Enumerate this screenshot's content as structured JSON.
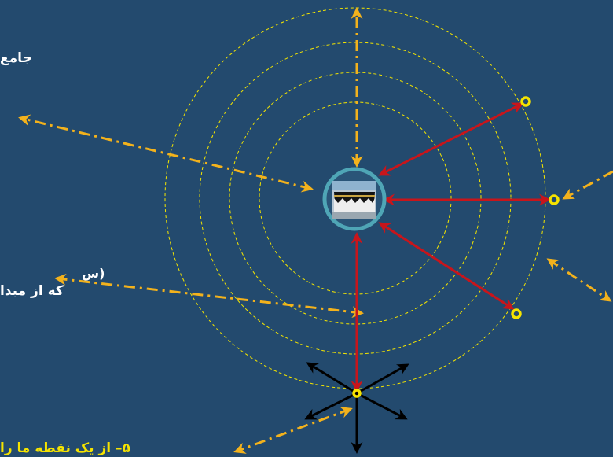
{
  "colors": {
    "background": "#234a6e",
    "circle_dash": "#f4e500",
    "arrow_orange": "#f3b21c",
    "arrow_red": "#c8151b",
    "arrow_black": "#000000",
    "point_yellow": "#f5e300",
    "kaaba_ring": "#4fa6b6",
    "text_main": "#ffffff",
    "text_highlight": "#f5e300"
  },
  "texts": {
    "line1": "جامع",
    "line2": "(س",
    "line3": "که از مبدا",
    "line4": "۵– از یک نقطه ما را"
  },
  "icons": {
    "center": "kaaba-icon",
    "points": "ring-point-icon"
  }
}
